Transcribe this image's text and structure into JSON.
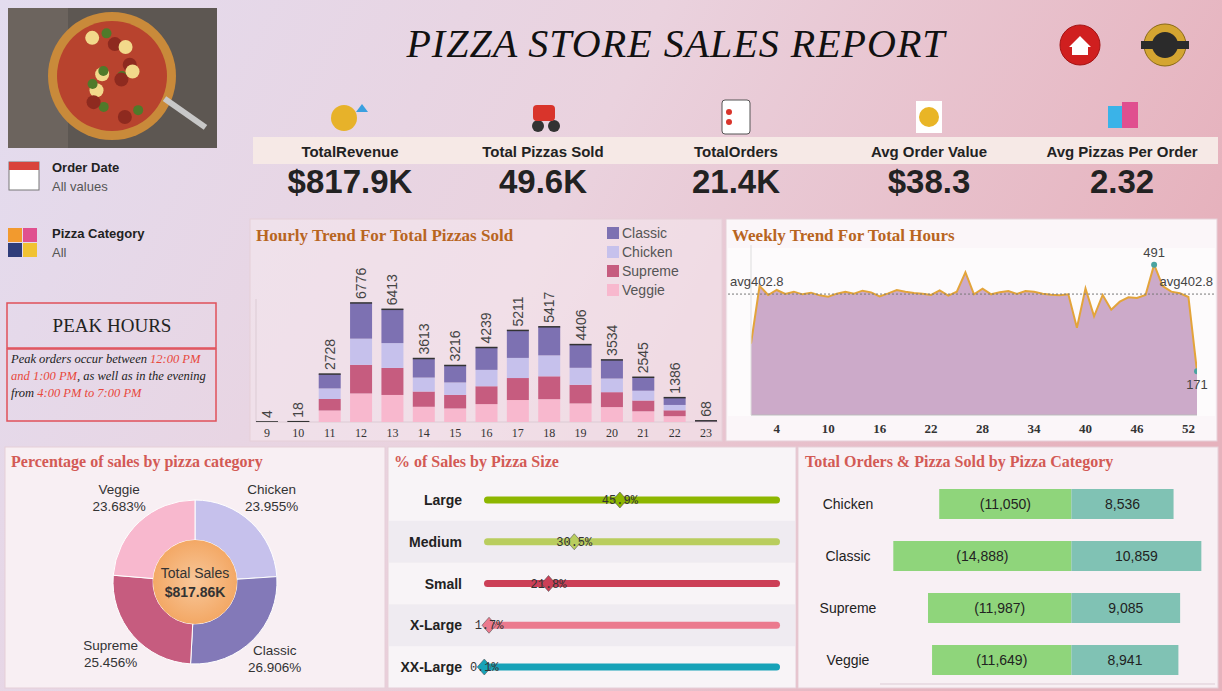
{
  "header": {
    "title": "PIZZA STORE SALES REPORT"
  },
  "filters": [
    {
      "label": "Order Date",
      "value": "All values"
    },
    {
      "label": "Pizza Category",
      "value": "All"
    }
  ],
  "kpis": [
    {
      "label": "TotalRevenue",
      "value": "$817.9K"
    },
    {
      "label": "Total Pizzas Sold",
      "value": "49.6K"
    },
    {
      "label": "TotalOrders",
      "value": "21.4K"
    },
    {
      "label": "Avg Order Value",
      "value": "$38.3"
    },
    {
      "label": "Avg Pizzas Per Order",
      "value": "2.32"
    }
  ],
  "peak_hours": {
    "title": "PEAK HOURS",
    "text": [
      {
        "text": "Peak orders occur between ",
        "highlight": false
      },
      {
        "text": "12:00 PM and 1:00 PM",
        "highlight": true
      },
      {
        "text": ", as well as in the evening from ",
        "highlight": false
      },
      {
        "text": "4:00 PM to 7:00 PM",
        "highlight": true
      }
    ]
  },
  "chart_data": [
    {
      "type": "bar",
      "title": "Hourly Trend For Total Pizzas Sold",
      "stacked": true,
      "legend": "top-right",
      "tick_labels": "x",
      "categories": [
        "9",
        "10",
        "11",
        "12",
        "13",
        "14",
        "15",
        "16",
        "17",
        "18",
        "19",
        "20",
        "21",
        "22",
        "23"
      ],
      "ylim": [
        0,
        7000
      ],
      "series": [
        {
          "name": "Classic",
          "color": "#7d71b2",
          "values": [
            1,
            5,
            818,
            2033,
            1924,
            1084,
            965,
            1272,
            1563,
            1625,
            1322,
            1060,
            764,
            416,
            20
          ]
        },
        {
          "name": "Chicken",
          "color": "#c6c1ec",
          "values": [
            1,
            4,
            600,
            1491,
            1411,
            795,
            708,
            933,
            1146,
            1192,
            969,
            777,
            560,
            305,
            15
          ]
        },
        {
          "name": "Supreme",
          "color": "#c65c7f",
          "values": [
            1,
            4,
            655,
            1626,
            1539,
            867,
            772,
            1017,
            1251,
            1300,
            1057,
            848,
            611,
            333,
            16
          ]
        },
        {
          "name": "Veggie",
          "color": "#f8b8ce",
          "values": [
            1,
            5,
            655,
            1626,
            1539,
            867,
            771,
            1017,
            1251,
            1300,
            1058,
            849,
            610,
            332,
            17
          ]
        }
      ],
      "totals": [
        4,
        18,
        2728,
        6776,
        6413,
        3613,
        3216,
        4239,
        5211,
        5417,
        4406,
        3534,
        2545,
        1386,
        68
      ]
    },
    {
      "type": "area",
      "title": "Weekly Trend For Total Hours",
      "color": "#e3a43a",
      "tick_labels": "x",
      "x": [
        1,
        2,
        3,
        4,
        5,
        6,
        7,
        8,
        9,
        10,
        11,
        12,
        13,
        14,
        15,
        16,
        17,
        18,
        19,
        20,
        21,
        22,
        23,
        24,
        25,
        26,
        27,
        28,
        29,
        30,
        31,
        32,
        33,
        34,
        35,
        36,
        37,
        38,
        39,
        40,
        41,
        42,
        43,
        44,
        45,
        46,
        47,
        48,
        49,
        50,
        51,
        52,
        53
      ],
      "values": [
        254,
        427,
        400,
        415,
        403,
        410,
        402,
        407,
        399,
        395,
        404,
        410,
        404,
        413,
        408,
        396,
        405,
        415,
        410,
        406,
        404,
        400,
        414,
        398,
        410,
        468,
        402,
        419,
        402,
        408,
        412,
        403,
        412,
        410,
        404,
        401,
        399,
        402,
        302,
        420,
        336,
        400,
        356,
        380,
        393,
        391,
        400,
        491,
        427,
        410,
        405,
        394,
        171
      ],
      "value_labels": [
        null,
        null,
        null,
        null,
        null,
        null,
        null,
        null,
        null,
        null,
        null,
        null,
        null,
        null,
        null,
        null,
        null,
        null,
        null,
        null,
        null,
        null,
        null,
        null,
        null,
        null,
        null,
        null,
        null,
        null,
        null,
        null,
        null,
        null,
        null,
        null,
        null,
        null,
        null,
        null,
        null,
        null,
        null,
        null,
        null,
        null,
        null,
        "491",
        null,
        null,
        null,
        null,
        "171"
      ],
      "xlim": [
        1,
        53
      ],
      "xticks": [
        4,
        10,
        16,
        22,
        28,
        34,
        40,
        46,
        52
      ],
      "ylim": [
        40,
        550
      ],
      "reference_line": {
        "value": 402.8,
        "label": "avg402.8"
      }
    },
    {
      "type": "donut",
      "title": "Percentage of sales by pizza category",
      "categories": [
        "Chicken",
        "Classic",
        "Supreme",
        "Veggie"
      ],
      "values": [
        23.955,
        26.906,
        25.456,
        23.683
      ],
      "value_labels": [
        "23.955%",
        "26.906%",
        "25.456%",
        "23.683%"
      ],
      "colors": [
        "#c6c1ec",
        "#8379b8",
        "#c65c7f",
        "#f8b8ce"
      ],
      "center_label": "Total Sales",
      "center_value": "$817.86K"
    },
    {
      "type": "bar",
      "title": "% of Sales by Pizza Size",
      "orientation": "horizontal",
      "marker": "diamond",
      "data_labels": true,
      "tick_labels": "y",
      "categories": [
        "Large",
        "Medium",
        "Small",
        "X-Large",
        "XX-Large"
      ],
      "values": [
        45.9,
        30.5,
        21.8,
        1.7,
        0.1
      ],
      "value_labels": [
        "45.9%",
        "30.5%",
        "21.8%",
        "1.7%",
        "0.1%"
      ],
      "colors": [
        "#8db600",
        "#b9cd5e",
        "#cc3f57",
        "#eb7a8e",
        "#17a2b8"
      ],
      "xlim": [
        0,
        100
      ]
    },
    {
      "type": "bar",
      "title": "Total Orders & Pizza Sold by Pizza Category",
      "orientation": "horizontal",
      "stacked": true,
      "data_labels": true,
      "tick_labels": "y",
      "categories": [
        "Chicken",
        "Classic",
        "Supreme",
        "Veggie"
      ],
      "series": [
        {
          "color": "#8fd57b",
          "values": [
            -11050,
            -14888,
            -11987,
            -11649
          ],
          "value_labels": [
            "(11,050)",
            "(14,888)",
            "(11,987)",
            "(11,649)"
          ]
        },
        {
          "color": "#80c2b4",
          "values": [
            8536,
            10859,
            9085,
            8941
          ],
          "value_labels": [
            "8,536",
            "10,859",
            "9,085",
            "8,941"
          ]
        }
      ],
      "xlim": [
        -16000,
        12000
      ]
    }
  ]
}
